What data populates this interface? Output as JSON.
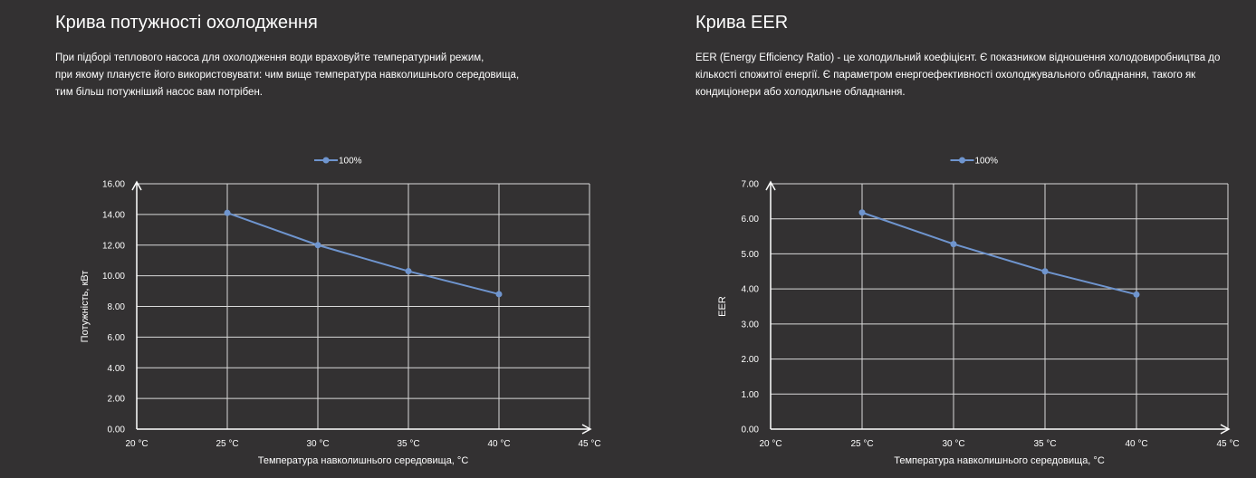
{
  "panels": {
    "left": {
      "title": "Крива потужності охолодження",
      "description_lines": [
        "При підборі теплового насоса для охолодження води враховуйте температурний режим,",
        "при якому плануєте його використовувати: чим вище температура навколишнього середовища,",
        "тим більш потужніший насос вам потрібен."
      ]
    },
    "right": {
      "title": "Крива EER",
      "description_lines": [
        "EER (Energy Efficiency Ratio) - це холодильний коефіцієнт. Є показником відношення холодовиробництва до",
        "кількості спожитої енергії. Є параметром енергоефективності охолоджувального обладнання, такого як",
        "кондиціонери або холодильне обладнання."
      ]
    }
  },
  "colors": {
    "background": "#333132",
    "series": "#6f95cf",
    "grid": "#d9d9d9",
    "text": "#ffffff"
  },
  "chart_data": [
    {
      "type": "line",
      "title": "",
      "xlabel": "Температура навколишнього середовища, °C",
      "ylabel": "Потужність, кВт",
      "x_ticks": [
        "20 °C",
        "25 °C",
        "30 °C",
        "35 °C",
        "40 °C",
        "45 °C"
      ],
      "x_values": [
        20,
        25,
        30,
        35,
        40,
        45
      ],
      "y_ticks": [
        "0.00",
        "2.00",
        "4.00",
        "6.00",
        "8.00",
        "10.00",
        "12.00",
        "14.00",
        "16.00"
      ],
      "xlim": [
        20,
        45
      ],
      "ylim": [
        0,
        16
      ],
      "grid": true,
      "legend_position": "top-center",
      "series": [
        {
          "name": "100%",
          "x": [
            25,
            30,
            35,
            40
          ],
          "y": [
            14.1,
            12.0,
            10.3,
            8.8
          ]
        }
      ]
    },
    {
      "type": "line",
      "title": "",
      "xlabel": "Температура навколишнього середовища, °C",
      "ylabel": "EER",
      "x_ticks": [
        "20 °C",
        "25 °C",
        "30 °C",
        "35 °C",
        "40 °C",
        "45 °C"
      ],
      "x_values": [
        20,
        25,
        30,
        35,
        40,
        45
      ],
      "y_ticks": [
        "0.00",
        "1.00",
        "2.00",
        "3.00",
        "4.00",
        "5.00",
        "6.00",
        "7.00"
      ],
      "xlim": [
        20,
        45
      ],
      "ylim": [
        0,
        7
      ],
      "grid": true,
      "legend_position": "top-center",
      "series": [
        {
          "name": "100%",
          "x": [
            25,
            30,
            35,
            40
          ],
          "y": [
            6.18,
            5.28,
            4.5,
            3.84
          ]
        }
      ]
    }
  ]
}
